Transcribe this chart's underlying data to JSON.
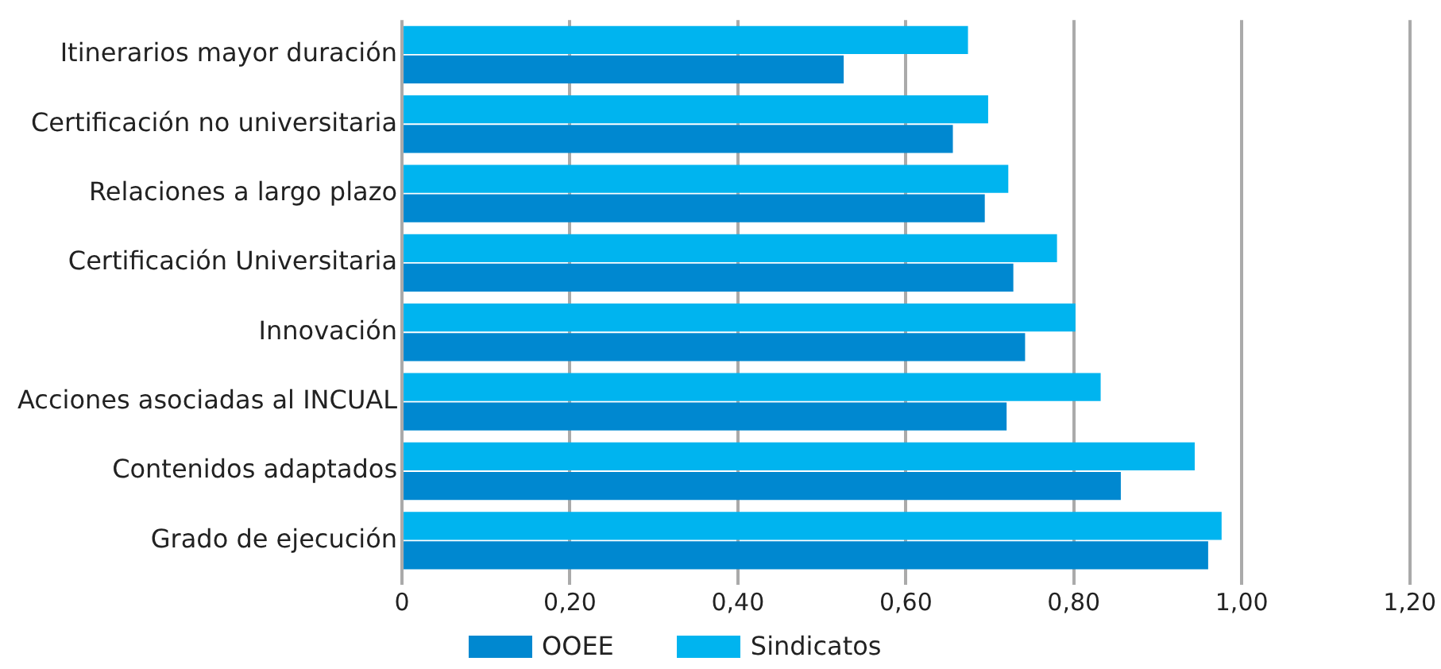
{
  "chart_data": {
    "type": "bar",
    "orientation": "horizontal",
    "categories": [
      "Itinerarios mayor duración",
      "Certificación no universitaria",
      "Relaciones a largo plazo",
      "Certificación Universitaria",
      "Innovación",
      "Acciones asociadas al INCUAL",
      "Contenidos adaptados",
      "Grado de ejecución"
    ],
    "series": [
      {
        "name": "Sindicatos",
        "color": "#00b4ef",
        "values": [
          0.674,
          0.698,
          0.722,
          0.78,
          0.802,
          0.832,
          0.944,
          0.976
        ]
      },
      {
        "name": "OOEE",
        "color": "#0088d0",
        "values": [
          0.526,
          0.656,
          0.694,
          0.728,
          0.742,
          0.72,
          0.856,
          0.96
        ]
      }
    ],
    "xlim": [
      0,
      1.2
    ],
    "xticks": [
      0,
      {
        "value": 0.2,
        "label": "0,20"
      },
      {
        "value": 0.4,
        "label": "0,40"
      },
      {
        "value": 0.6,
        "label": "0,60"
      },
      {
        "value": 0.8,
        "label": "0,80"
      },
      {
        "value": 1,
        "label": "1,00"
      },
      {
        "value": 1.2,
        "label": "1,20"
      }
    ],
    "grid": "x",
    "legend": "bottom"
  }
}
